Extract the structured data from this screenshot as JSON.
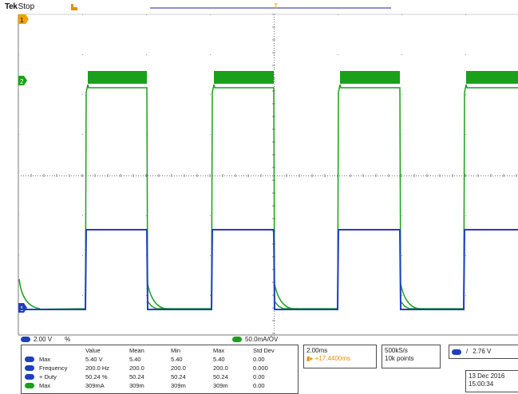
{
  "header": {
    "brand": "Tek",
    "state": "Stop",
    "trigger_position_icon": "trigger-position-marker-icon",
    "record_marker_icon": "trigger-marker-icon"
  },
  "colors": {
    "ch1": "#1aa01a",
    "ch2": "#1f3fbf",
    "grid": "#8c8c8c",
    "accent": "#f08a00"
  },
  "markers": {
    "ch1_ground": "1",
    "ch2_ground": "2",
    "ch3_ground": "1"
  },
  "channels": {
    "ch1_scale": "2.00 V",
    "ch1_coupling": "%",
    "ch4_scale": "50.0mA/ÓV"
  },
  "measurements": {
    "columns": [
      "Value",
      "Mean",
      "Min",
      "Max",
      "Std Dev"
    ],
    "rows": [
      {
        "label": "Max",
        "values": [
          "5.40 V",
          "5.40",
          "5.40",
          "5.40",
          "0.00"
        ]
      },
      {
        "label": "Frequency",
        "values": [
          "200.0 Hz",
          "200.0",
          "200.0",
          "200.0",
          "0.000"
        ]
      },
      {
        "label": "+ Duty",
        "values": [
          "50.24 %",
          "50.24",
          "50.24",
          "50.24",
          "0.00"
        ]
      },
      {
        "label": "Max",
        "values": [
          "309mA",
          "309m",
          "309m",
          "309m",
          "0.00"
        ]
      }
    ]
  },
  "timebase": {
    "scale": "2.00ms",
    "delay": "+17.4400ms"
  },
  "acquisition": {
    "sample_rate": "500kS/s",
    "record_length": "10k points"
  },
  "trigger": {
    "slope_icon": "rising-edge-icon",
    "level": "2.76 V"
  },
  "datetime": {
    "date": "13 Dec 2016",
    "time": "15:00:34"
  }
}
